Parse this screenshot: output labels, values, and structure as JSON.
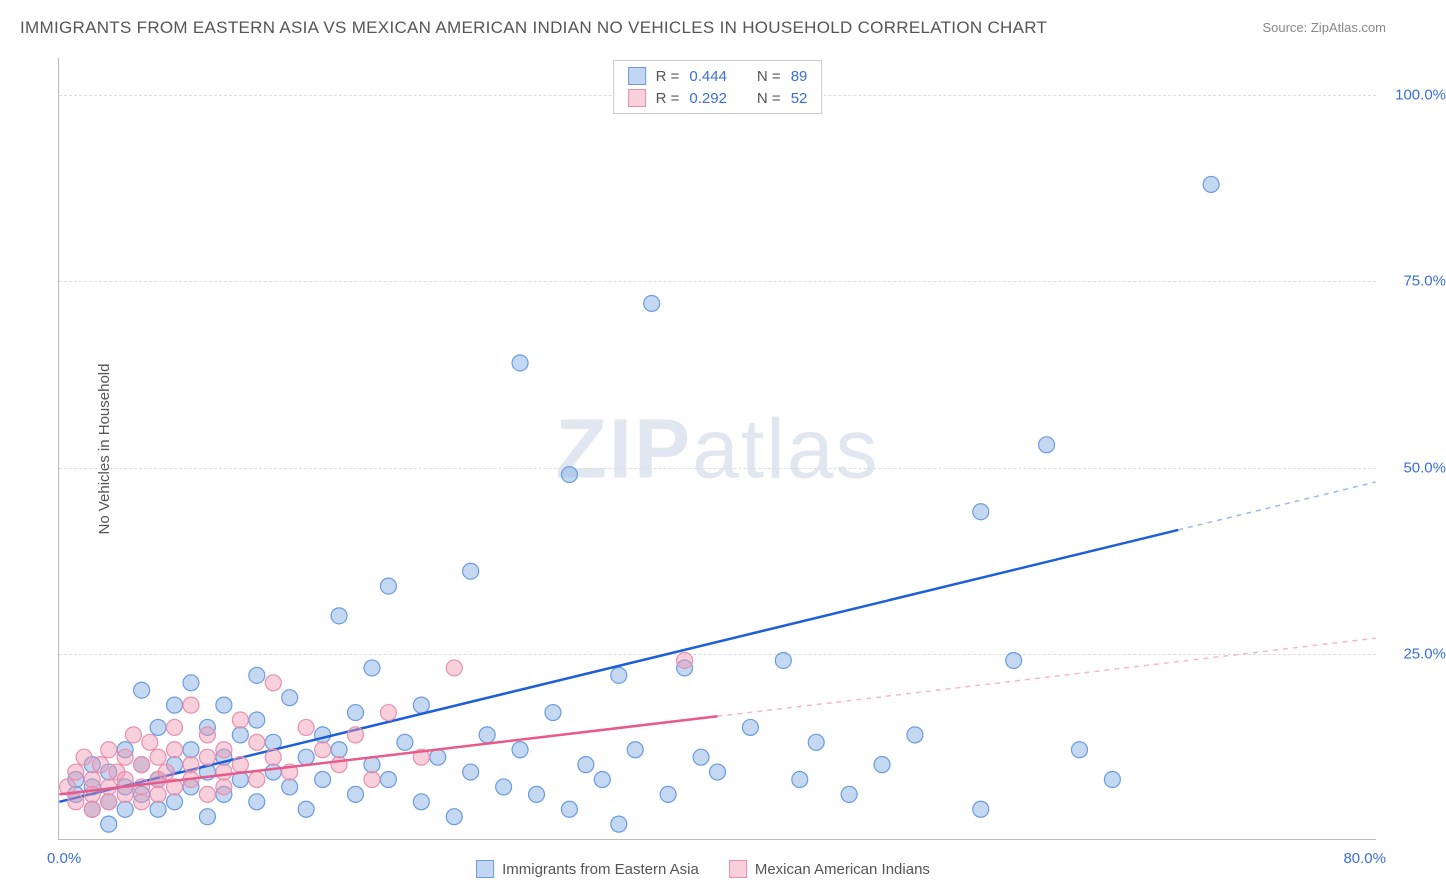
{
  "title": "IMMIGRANTS FROM EASTERN ASIA VS MEXICAN AMERICAN INDIAN NO VEHICLES IN HOUSEHOLD CORRELATION CHART",
  "source": "Source: ZipAtlas.com",
  "watermark": "ZIPatlas",
  "chart": {
    "type": "scatter",
    "background_color": "#ffffff",
    "grid_color": "#dddddd",
    "axis_color": "#bbbbbb",
    "tick_label_color": "#3b6fd6",
    "xlim": [
      0,
      80
    ],
    "ylim": [
      0,
      105
    ],
    "x_origin_label": "0.0%",
    "x_max_label": "80.0%",
    "y_ticks": [
      25,
      50,
      75,
      100
    ],
    "y_tick_labels": [
      "25.0%",
      "50.0%",
      "75.0%",
      "100.0%"
    ],
    "y_title": "No Vehicles in Household",
    "marker_radius": 8,
    "marker_stroke_width": 1.2,
    "regression_line_width": 2.5,
    "series": [
      {
        "name": "Immigrants from Eastern Asia",
        "marker_fill": "rgba(125,170,225,0.45)",
        "marker_stroke": "#6a9be0",
        "regression_color": "#1d5ed9",
        "regression_dash_color": "#9cb9ea",
        "R": 0.444,
        "N": 89,
        "regression": {
          "x1": 0,
          "y1": 5,
          "x_solid_end": 68,
          "x2": 80,
          "y2": 48
        },
        "points": [
          [
            1,
            6
          ],
          [
            1,
            8
          ],
          [
            2,
            4
          ],
          [
            2,
            10
          ],
          [
            2,
            7
          ],
          [
            3,
            5
          ],
          [
            3,
            9
          ],
          [
            3,
            2
          ],
          [
            4,
            7
          ],
          [
            4,
            12
          ],
          [
            4,
            4
          ],
          [
            5,
            6
          ],
          [
            5,
            10
          ],
          [
            5,
            20
          ],
          [
            6,
            8
          ],
          [
            6,
            4
          ],
          [
            6,
            15
          ],
          [
            7,
            18
          ],
          [
            7,
            10
          ],
          [
            7,
            5
          ],
          [
            8,
            12
          ],
          [
            8,
            7
          ],
          [
            8,
            21
          ],
          [
            9,
            9
          ],
          [
            9,
            15
          ],
          [
            9,
            3
          ],
          [
            10,
            11
          ],
          [
            10,
            6
          ],
          [
            10,
            18
          ],
          [
            11,
            14
          ],
          [
            11,
            8
          ],
          [
            12,
            16
          ],
          [
            12,
            5
          ],
          [
            12,
            22
          ],
          [
            13,
            9
          ],
          [
            13,
            13
          ],
          [
            14,
            7
          ],
          [
            14,
            19
          ],
          [
            15,
            11
          ],
          [
            15,
            4
          ],
          [
            16,
            14
          ],
          [
            16,
            8
          ],
          [
            17,
            30
          ],
          [
            17,
            12
          ],
          [
            18,
            6
          ],
          [
            18,
            17
          ],
          [
            19,
            10
          ],
          [
            19,
            23
          ],
          [
            20,
            34
          ],
          [
            20,
            8
          ],
          [
            21,
            13
          ],
          [
            22,
            5
          ],
          [
            22,
            18
          ],
          [
            23,
            11
          ],
          [
            24,
            3
          ],
          [
            25,
            36
          ],
          [
            25,
            9
          ],
          [
            26,
            14
          ],
          [
            27,
            7
          ],
          [
            28,
            64
          ],
          [
            28,
            12
          ],
          [
            29,
            6
          ],
          [
            30,
            17
          ],
          [
            31,
            49
          ],
          [
            31,
            4
          ],
          [
            32,
            10
          ],
          [
            33,
            8
          ],
          [
            34,
            2
          ],
          [
            34,
            22
          ],
          [
            35,
            12
          ],
          [
            36,
            72
          ],
          [
            37,
            6
          ],
          [
            38,
            23
          ],
          [
            39,
            11
          ],
          [
            40,
            9
          ],
          [
            42,
            15
          ],
          [
            44,
            24
          ],
          [
            45,
            8
          ],
          [
            46,
            13
          ],
          [
            48,
            6
          ],
          [
            50,
            10
          ],
          [
            52,
            14
          ],
          [
            56,
            44
          ],
          [
            58,
            24
          ],
          [
            60,
            53
          ],
          [
            62,
            12
          ],
          [
            64,
            8
          ],
          [
            70,
            88
          ],
          [
            56,
            4
          ]
        ]
      },
      {
        "name": "Mexican American Indians",
        "marker_fill": "rgba(240,150,175,0.45)",
        "marker_stroke": "#e78fb0",
        "regression_color": "#e85a8a",
        "regression_dash_color": "#f4b8cc",
        "R": 0.292,
        "N": 52,
        "regression": {
          "x1": 0,
          "y1": 6,
          "x_solid_end": 40,
          "x2": 80,
          "y2": 27
        },
        "points": [
          [
            0.5,
            7
          ],
          [
            1,
            5
          ],
          [
            1,
            9
          ],
          [
            1.5,
            11
          ],
          [
            2,
            6
          ],
          [
            2,
            8
          ],
          [
            2,
            4
          ],
          [
            2.5,
            10
          ],
          [
            3,
            7
          ],
          [
            3,
            12
          ],
          [
            3,
            5
          ],
          [
            3.5,
            9
          ],
          [
            4,
            8
          ],
          [
            4,
            11
          ],
          [
            4,
            6
          ],
          [
            4.5,
            14
          ],
          [
            5,
            7
          ],
          [
            5,
            10
          ],
          [
            5,
            5
          ],
          [
            5.5,
            13
          ],
          [
            6,
            8
          ],
          [
            6,
            11
          ],
          [
            6,
            6
          ],
          [
            6.5,
            9
          ],
          [
            7,
            12
          ],
          [
            7,
            7
          ],
          [
            7,
            15
          ],
          [
            8,
            10
          ],
          [
            8,
            8
          ],
          [
            8,
            18
          ],
          [
            9,
            11
          ],
          [
            9,
            6
          ],
          [
            9,
            14
          ],
          [
            10,
            9
          ],
          [
            10,
            12
          ],
          [
            10,
            7
          ],
          [
            11,
            16
          ],
          [
            11,
            10
          ],
          [
            12,
            8
          ],
          [
            12,
            13
          ],
          [
            13,
            11
          ],
          [
            13,
            21
          ],
          [
            14,
            9
          ],
          [
            15,
            15
          ],
          [
            16,
            12
          ],
          [
            17,
            10
          ],
          [
            18,
            14
          ],
          [
            19,
            8
          ],
          [
            20,
            17
          ],
          [
            22,
            11
          ],
          [
            24,
            23
          ],
          [
            38,
            24
          ]
        ]
      }
    ]
  },
  "legend_top": {
    "r_label": "R =",
    "n_label": "N =",
    "rows": [
      {
        "swatch_class": "sw-blue",
        "R": "0.444",
        "N": "89"
      },
      {
        "swatch_class": "sw-pink",
        "R": "0.292",
        "N": "52"
      }
    ]
  },
  "legend_bottom": [
    {
      "swatch_class": "sw-blue",
      "label": "Immigrants from Eastern Asia"
    },
    {
      "swatch_class": "sw-pink",
      "label": "Mexican American Indians"
    }
  ]
}
